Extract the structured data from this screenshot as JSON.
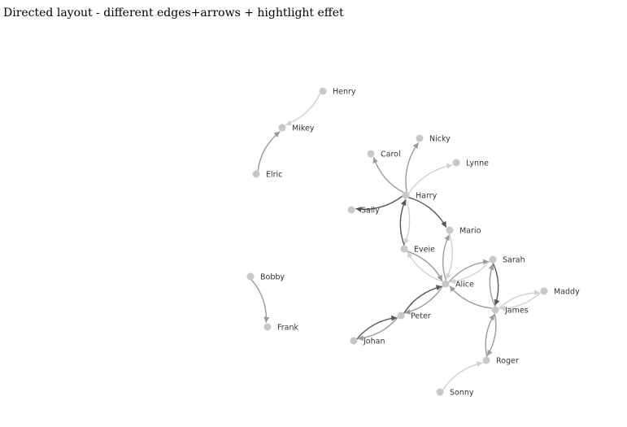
{
  "page": {
    "title": "Directed layout - different edges+arrows + hightlight effet"
  },
  "graph": {
    "edge_colors": {
      "light": "#d0d0d0",
      "mid": "#9a9a9a",
      "dark": "#555555"
    },
    "node_color": "#c8c8c8",
    "nodes": [
      {
        "id": "Henry"
      },
      {
        "id": "Mikey"
      },
      {
        "id": "Elric"
      },
      {
        "id": "Nicky"
      },
      {
        "id": "Carol"
      },
      {
        "id": "Lynne"
      },
      {
        "id": "Harry"
      },
      {
        "id": "Sally"
      },
      {
        "id": "Mario"
      },
      {
        "id": "Eveie"
      },
      {
        "id": "Sarah"
      },
      {
        "id": "Alice"
      },
      {
        "id": "Maddy"
      },
      {
        "id": "James"
      },
      {
        "id": "Bobby"
      },
      {
        "id": "Peter"
      },
      {
        "id": "Frank"
      },
      {
        "id": "Johan"
      },
      {
        "id": "Roger"
      },
      {
        "id": "Sonny"
      }
    ],
    "edges": [
      {
        "source": "Henry",
        "target": "Mikey",
        "tone": "light"
      },
      {
        "source": "Elric",
        "target": "Mikey",
        "tone": "mid"
      },
      {
        "source": "Bobby",
        "target": "Frank",
        "tone": "mid"
      },
      {
        "source": "Harry",
        "target": "Nicky",
        "tone": "mid"
      },
      {
        "source": "Harry",
        "target": "Carol",
        "tone": "mid"
      },
      {
        "source": "Harry",
        "target": "Lynne",
        "tone": "light"
      },
      {
        "source": "Harry",
        "target": "Sally",
        "tone": "dark"
      },
      {
        "source": "Harry",
        "target": "Mario",
        "tone": "dark"
      },
      {
        "source": "Harry",
        "target": "Eveie",
        "tone": "light"
      },
      {
        "source": "Eveie",
        "target": "Harry",
        "tone": "dark"
      },
      {
        "source": "Alice",
        "target": "Mario",
        "tone": "mid"
      },
      {
        "source": "Mario",
        "target": "Alice",
        "tone": "light"
      },
      {
        "source": "Alice",
        "target": "Eveie",
        "tone": "light"
      },
      {
        "source": "Eveie",
        "target": "Alice",
        "tone": "mid"
      },
      {
        "source": "Alice",
        "target": "Sarah",
        "tone": "mid"
      },
      {
        "source": "Sarah",
        "target": "Alice",
        "tone": "light"
      },
      {
        "source": "James",
        "target": "Alice",
        "tone": "mid"
      },
      {
        "source": "Sarah",
        "target": "James",
        "tone": "dark"
      },
      {
        "source": "James",
        "target": "Sarah",
        "tone": "mid"
      },
      {
        "source": "James",
        "target": "Maddy",
        "tone": "light"
      },
      {
        "source": "Maddy",
        "target": "James",
        "tone": "light"
      },
      {
        "source": "Peter",
        "target": "Alice",
        "tone": "dark"
      },
      {
        "source": "Alice",
        "target": "Peter",
        "tone": "mid"
      },
      {
        "source": "Johan",
        "target": "Peter",
        "tone": "dark"
      },
      {
        "source": "Peter",
        "target": "Johan",
        "tone": "mid"
      },
      {
        "source": "James",
        "target": "Roger",
        "tone": "mid"
      },
      {
        "source": "Roger",
        "target": "James",
        "tone": "mid"
      },
      {
        "source": "Sonny",
        "target": "Roger",
        "tone": "light"
      }
    ]
  }
}
